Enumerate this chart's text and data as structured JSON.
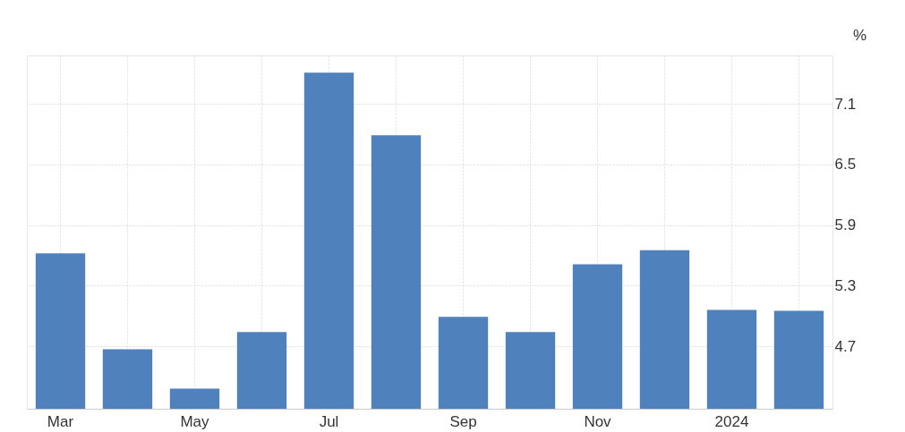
{
  "chart_data": {
    "type": "bar",
    "ylabel": "%",
    "categories": [
      "Mar",
      null,
      "May",
      null,
      "Jul",
      null,
      "Sep",
      null,
      "Nov",
      null,
      "2024",
      null
    ],
    "values": [
      5.62,
      4.67,
      4.28,
      4.84,
      7.41,
      6.79,
      4.99,
      4.84,
      5.51,
      5.65,
      5.06,
      5.05
    ],
    "color": "#4f81bd",
    "ylim": [
      4.08,
      7.58
    ],
    "yticks": [
      4.7,
      5.3,
      5.9,
      6.5,
      7.1
    ],
    "grid": true
  }
}
